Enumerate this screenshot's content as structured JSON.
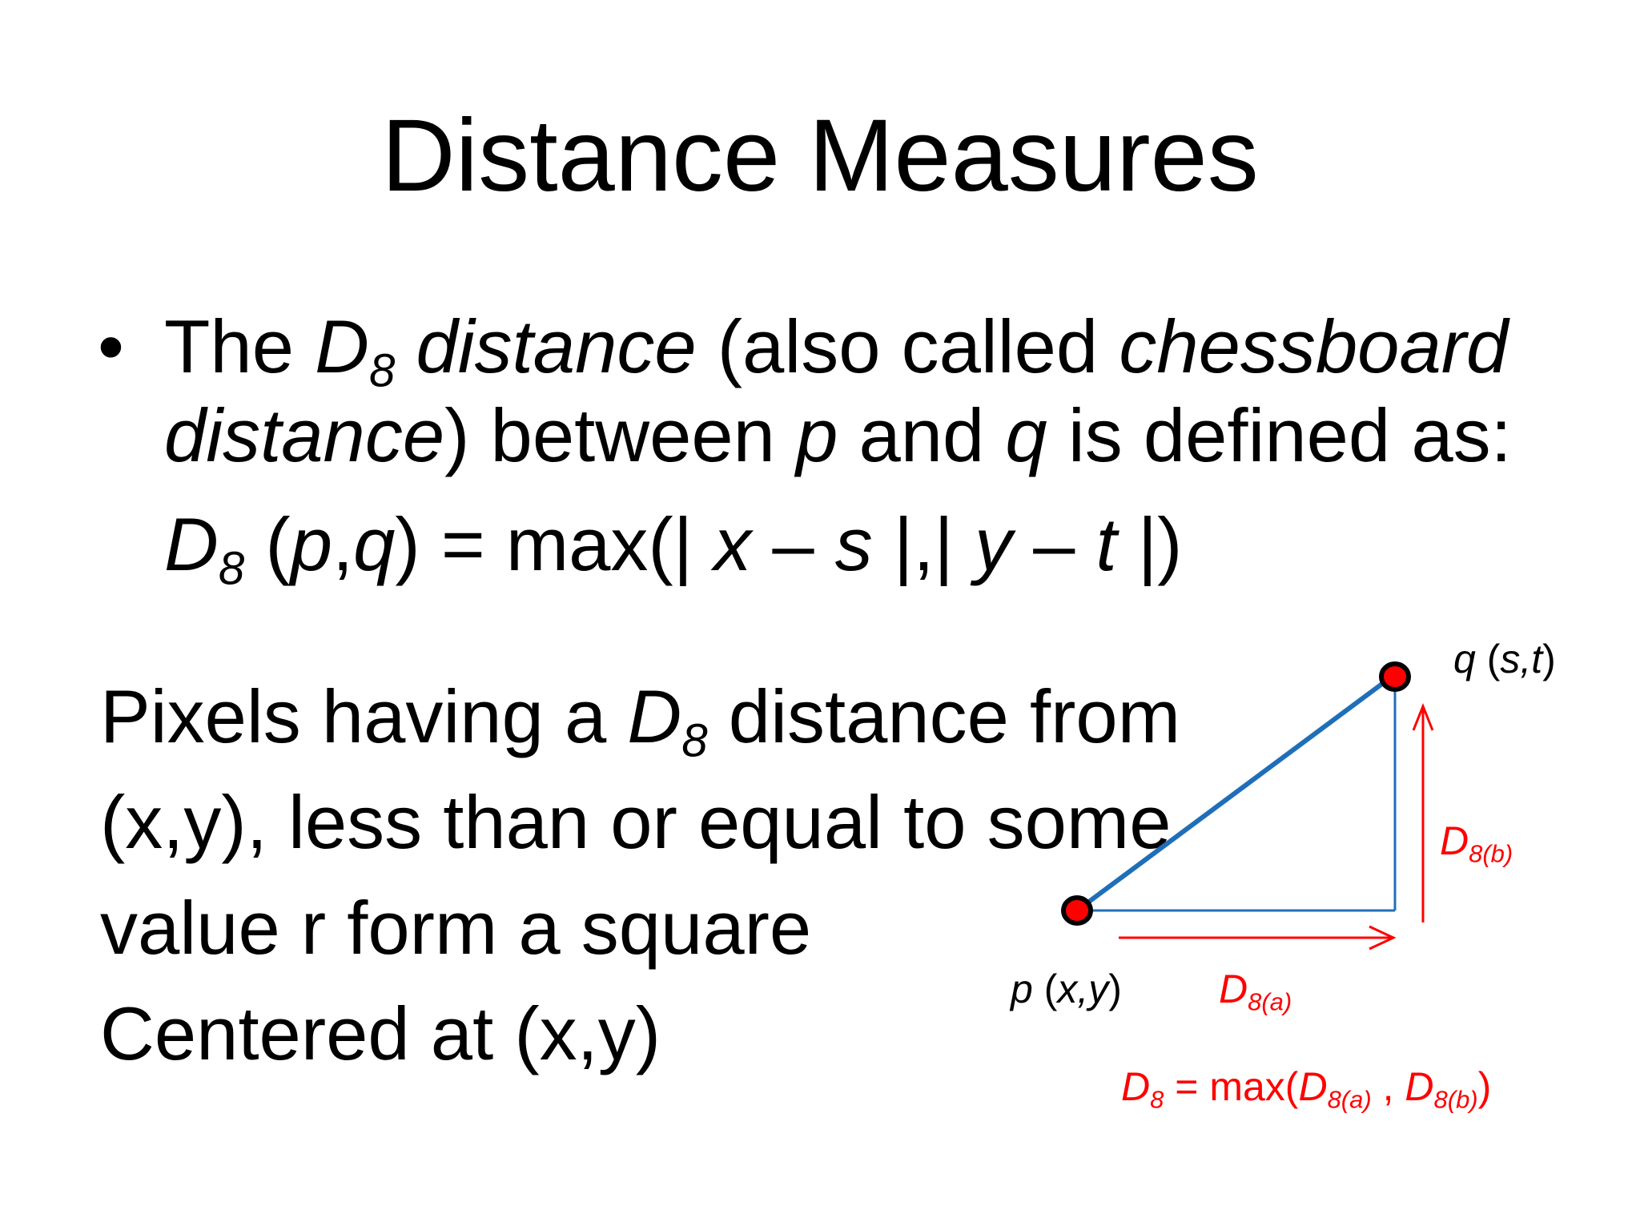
{
  "title": "Distance Measures",
  "bullet": {
    "marker": "•",
    "line1": {
      "the": "The ",
      "d": "D",
      "sub": "8",
      "term": " distance",
      "rest": " (also called ",
      "chess": "chessboard"
    },
    "line2": {
      "distance": "distance",
      "rest1": ") between ",
      "p": "p",
      "and": " and ",
      "q": "q",
      "rest2": " is defined as:"
    },
    "formula": {
      "d": "D",
      "sub": "8",
      "args_open": " (",
      "p": "p",
      "comma": ",",
      "q": "q",
      "eq": ") = max(| ",
      "x": "x",
      "minus1": " – ",
      "s": "s",
      "mid": " |,| ",
      "y": "y",
      "minus2": " – ",
      "t": "t",
      "end": " |)"
    }
  },
  "paragraph": {
    "line1": {
      "a": "Pixels having a ",
      "d": "D",
      "sub": "8",
      "b": " distance from"
    },
    "line2": "(x,y), less than or equal to some",
    "line3": "value r form a square",
    "line4": "Centered at (x,y)"
  },
  "diagram": {
    "q_label": {
      "q": "q",
      "open": " (",
      "st": "s,t",
      "close": ")"
    },
    "p_label": {
      "p": "p",
      "open": " (",
      "xy": "x,y",
      "close": ")"
    },
    "d8a": {
      "d": "D",
      "sub": "8(a)"
    },
    "d8b": {
      "d": "D",
      "sub": "8(b)"
    },
    "equation": {
      "d": "D",
      "sub": "8",
      "eq": " = max(",
      "a": "D",
      "asub": "8(a)",
      "sep": " , ",
      "b": "D",
      "bsub": "8(b)",
      "close": ")"
    },
    "colors": {
      "line": "#1f6fb8",
      "arrow": "#ff0000",
      "point": "#ff0000"
    }
  }
}
